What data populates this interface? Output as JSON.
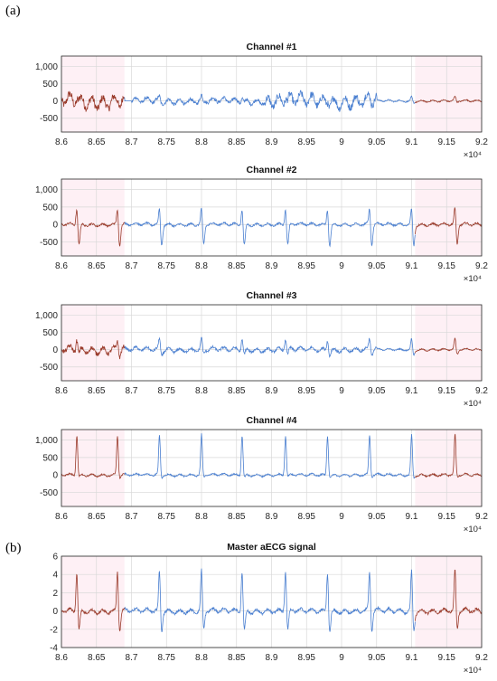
{
  "panel_labels": [
    "(a)",
    "(b)"
  ],
  "colors": {
    "recorded": "#4a7fd0",
    "extension": "#9a3a2a",
    "highlight": "#fde3ec",
    "grid": "#d8d8d8",
    "axis": "#262626"
  },
  "x_multiplier_label": "×10⁴",
  "chart_data": [
    {
      "type": "line",
      "title": "Channel #1",
      "xlim": [
        8.6,
        9.2
      ],
      "ylim": [
        -900,
        1300
      ],
      "xticks": [
        "8.6",
        "8.65",
        "8.7",
        "8.75",
        "8.8",
        "8.85",
        "8.9",
        "8.95",
        "9",
        "9.05",
        "9.1",
        "9.15",
        "9.2"
      ],
      "yticks": [
        "1,000",
        "500",
        "0",
        "-500"
      ],
      "ytick_values": [
        1000,
        500,
        0,
        -500
      ],
      "grid": true,
      "segments": [
        {
          "color": "extension",
          "x": [
            8.6,
            8.69
          ]
        },
        {
          "color": "recorded",
          "x": [
            8.69,
            9.105
          ]
        },
        {
          "color": "extension",
          "x": [
            9.105,
            9.2
          ]
        }
      ],
      "highlight_x": [
        [
          8.6,
          8.69
        ],
        [
          9.105,
          9.2
        ]
      ],
      "beats_x": [
        8.622,
        8.68,
        8.74,
        8.8,
        8.858,
        8.92,
        8.98,
        9.04,
        9.1,
        9.162
      ],
      "peak_amplitude": 120,
      "noise_amplitude": [
        [
          8.6,
          8.69,
          280
        ],
        [
          8.89,
          9.05,
          260
        ],
        [
          8.7,
          8.89,
          120
        ],
        [
          9.05,
          9.2,
          40
        ]
      ]
    },
    {
      "type": "line",
      "title": "Channel #2",
      "xlim": [
        8.6,
        9.2
      ],
      "ylim": [
        -900,
        1300
      ],
      "xticks": [
        "8.6",
        "8.65",
        "8.7",
        "8.75",
        "8.8",
        "8.85",
        "8.9",
        "8.95",
        "9",
        "9.05",
        "9.1",
        "9.15",
        "9.2"
      ],
      "yticks": [
        "1,000",
        "500",
        "0",
        "-500"
      ],
      "ytick_values": [
        1000,
        500,
        0,
        -500
      ],
      "grid": true,
      "segments": [
        {
          "color": "extension",
          "x": [
            8.6,
            8.69
          ]
        },
        {
          "color": "recorded",
          "x": [
            8.69,
            9.105
          ]
        },
        {
          "color": "extension",
          "x": [
            9.105,
            9.2
          ]
        }
      ],
      "highlight_x": [
        [
          8.6,
          8.69
        ],
        [
          9.105,
          9.2
        ]
      ],
      "beats_x": [
        8.622,
        8.68,
        8.74,
        8.8,
        8.858,
        8.92,
        8.98,
        9.04,
        9.1,
        9.162
      ],
      "peak_amplitude": 500,
      "trough_amplitude": -600,
      "noise_amplitude": [
        [
          8.6,
          9.2,
          60
        ]
      ]
    },
    {
      "type": "line",
      "title": "Channel #3",
      "xlim": [
        8.6,
        9.2
      ],
      "ylim": [
        -900,
        1300
      ],
      "xticks": [
        "8.6",
        "8.65",
        "8.7",
        "8.75",
        "8.8",
        "8.85",
        "8.9",
        "8.95",
        "9",
        "9.05",
        "9.1",
        "9.15",
        "9.2"
      ],
      "yticks": [
        "1,000",
        "500",
        "0",
        "-500"
      ],
      "ytick_values": [
        1000,
        500,
        0,
        -500
      ],
      "grid": true,
      "segments": [
        {
          "color": "extension",
          "x": [
            8.6,
            8.69
          ]
        },
        {
          "color": "recorded",
          "x": [
            8.69,
            9.105
          ]
        },
        {
          "color": "extension",
          "x": [
            9.105,
            9.2
          ]
        }
      ],
      "highlight_x": [
        [
          8.6,
          8.69
        ],
        [
          9.105,
          9.2
        ]
      ],
      "beats_x": [
        8.622,
        8.68,
        8.74,
        8.8,
        8.858,
        8.92,
        8.98,
        9.04,
        9.1,
        9.162
      ],
      "peak_amplitude": 330,
      "trough_amplitude": -150,
      "noise_amplitude": [
        [
          8.6,
          8.69,
          150
        ],
        [
          8.69,
          9.05,
          90
        ],
        [
          9.05,
          9.2,
          40
        ]
      ]
    },
    {
      "type": "line",
      "title": "Channel #4",
      "xlim": [
        8.6,
        9.2
      ],
      "ylim": [
        -900,
        1300
      ],
      "xticks": [
        "8.6",
        "8.65",
        "8.7",
        "8.75",
        "8.8",
        "8.85",
        "8.9",
        "8.95",
        "9",
        "9.05",
        "9.1",
        "9.15",
        "9.2"
      ],
      "yticks": [
        "1,000",
        "500",
        "0",
        "-500"
      ],
      "ytick_values": [
        1000,
        500,
        0,
        -500
      ],
      "grid": true,
      "segments": [
        {
          "color": "extension",
          "x": [
            8.6,
            8.69
          ]
        },
        {
          "color": "recorded",
          "x": [
            8.69,
            9.105
          ]
        },
        {
          "color": "extension",
          "x": [
            9.105,
            9.2
          ]
        }
      ],
      "highlight_x": [
        [
          8.6,
          8.69
        ],
        [
          9.105,
          9.2
        ]
      ],
      "beats_x": [
        8.622,
        8.68,
        8.74,
        8.8,
        8.858,
        8.92,
        8.98,
        9.04,
        9.1,
        9.162
      ],
      "peak_amplitude": 1150,
      "trough_amplitude": -80,
      "noise_amplitude": [
        [
          8.6,
          9.2,
          50
        ]
      ]
    },
    {
      "type": "line",
      "title": "Master aECG signal",
      "xlim": [
        8.6,
        9.2
      ],
      "ylim": [
        -4,
        6
      ],
      "xticks": [
        "8.6",
        "8.65",
        "8.7",
        "8.75",
        "8.8",
        "8.85",
        "8.9",
        "8.95",
        "9",
        "9.05",
        "9.1",
        "9.15",
        "9.2"
      ],
      "yticks": [
        "6",
        "4",
        "2",
        "0",
        "-2",
        "-4"
      ],
      "ytick_values": [
        6,
        4,
        2,
        0,
        -2,
        -4
      ],
      "grid": true,
      "segments": [
        {
          "color": "extension",
          "x": [
            8.6,
            8.69
          ]
        },
        {
          "color": "recorded",
          "x": [
            8.69,
            9.105
          ]
        },
        {
          "color": "extension",
          "x": [
            9.105,
            9.2
          ]
        }
      ],
      "highlight_x": [
        [
          8.6,
          8.69
        ],
        [
          9.105,
          9.2
        ]
      ],
      "beats_x": [
        8.622,
        8.68,
        8.74,
        8.8,
        8.858,
        8.92,
        8.98,
        9.04,
        9.1,
        9.162
      ],
      "peak_amplitude": 4.6,
      "trough_amplitude": -2.2,
      "noise_amplitude": [
        [
          8.6,
          9.2,
          0.35
        ]
      ]
    }
  ]
}
